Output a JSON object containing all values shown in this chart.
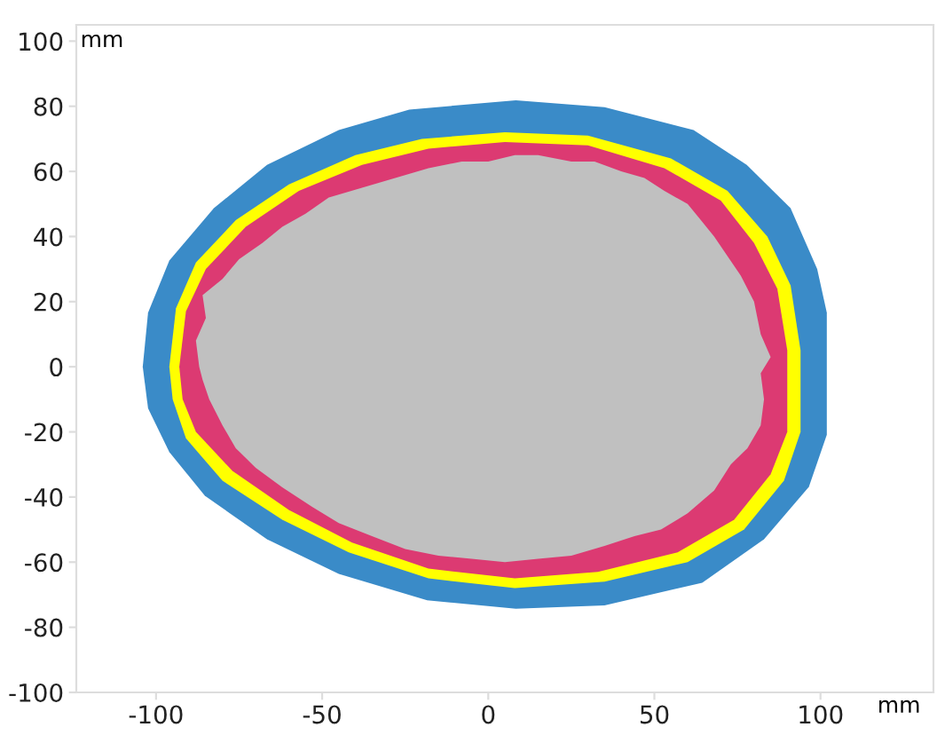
{
  "chart_data": {
    "type": "area",
    "xlabel": "mm",
    "ylabel": "mm",
    "xlim": [
      -124,
      134
    ],
    "ylim": [
      -100,
      105
    ],
    "xticks": [
      -100,
      -50,
      0,
      50,
      100
    ],
    "yticks": [
      -100,
      -80,
      -60,
      -40,
      -20,
      0,
      20,
      40,
      60,
      80,
      100
    ],
    "grid": false,
    "legend": false,
    "series": [
      {
        "color": "#3a8bc8",
        "x": [
          -104,
          -102.4,
          -96,
          -82.6,
          -66.6,
          -45,
          -23.8,
          8.3,
          35,
          61.8,
          77.8,
          91,
          99,
          101.9,
          101.9,
          96.5,
          83,
          64.4,
          35,
          8.3,
          -18.4,
          -45,
          -66.6,
          -85.3,
          -96,
          -102.4
        ],
        "values": [
          0,
          16.6,
          32.6,
          48.7,
          62,
          72.7,
          79,
          81.8,
          79.7,
          72.7,
          62,
          48.7,
          30,
          16.6,
          -20.9,
          -36.9,
          -53,
          -66.3,
          -73.3,
          -74.3,
          -71.7,
          -63.6,
          -53,
          -39.6,
          -26.2,
          -12.8
        ]
      },
      {
        "color": "#ffff00",
        "x": [
          -96,
          -94,
          -88,
          -76,
          -60,
          -40,
          -20,
          5,
          30,
          55,
          72,
          84,
          91,
          94,
          94,
          89,
          77,
          60,
          35,
          8,
          -18,
          -42,
          -62,
          -80,
          -91,
          -95
        ],
        "values": [
          0,
          18,
          32,
          45,
          56,
          65,
          70,
          72,
          71,
          64,
          54,
          40,
          25,
          5,
          -20,
          -35,
          -50,
          -60,
          -66,
          -68,
          -65,
          -57,
          -47,
          -35,
          -22,
          -10
        ]
      },
      {
        "color": "#dc3a72",
        "x": [
          -93,
          -91,
          -85,
          -73,
          -57,
          -38,
          -18,
          5,
          30,
          53,
          70,
          80,
          87,
          90,
          90,
          85,
          74,
          57,
          33,
          8,
          -18,
          -41,
          -60,
          -77,
          -88,
          -92
        ],
        "values": [
          0,
          17,
          30,
          43,
          54,
          62,
          67,
          69,
          68,
          61,
          51,
          38,
          24,
          5,
          -20,
          -33,
          -47,
          -57,
          -63,
          -65,
          -62,
          -54,
          -44,
          -32,
          -20,
          -10
        ]
      },
      {
        "color": "#c0c0c0",
        "x": [
          -87,
          -88,
          -85,
          -86,
          -80,
          -75,
          -68,
          -62,
          -55,
          -48,
          -38,
          -28,
          -18,
          -8,
          0,
          8,
          15,
          25,
          32,
          40,
          47,
          53,
          60,
          64,
          68,
          72,
          76,
          80,
          82,
          85,
          82,
          83,
          82,
          78,
          73,
          68,
          60,
          52,
          44,
          35,
          25,
          15,
          5,
          -5,
          -15,
          -25,
          -35,
          -45,
          -53,
          -62,
          -70,
          -76,
          -80,
          -84,
          -86
        ],
        "values": [
          0,
          8,
          15,
          22,
          27,
          33,
          38,
          43,
          47,
          52,
          55,
          58,
          61,
          63,
          63,
          65,
          65,
          63,
          63,
          60,
          58,
          54,
          50,
          45,
          40,
          34,
          28,
          20,
          10,
          3,
          -2,
          -10,
          -18,
          -25,
          -30,
          -38,
          -45,
          -50,
          -52,
          -55,
          -58,
          -59,
          -60,
          -59,
          -58,
          -56,
          -52,
          -48,
          -43,
          -37,
          -31,
          -25,
          -18,
          -10,
          -4
        ]
      }
    ]
  }
}
